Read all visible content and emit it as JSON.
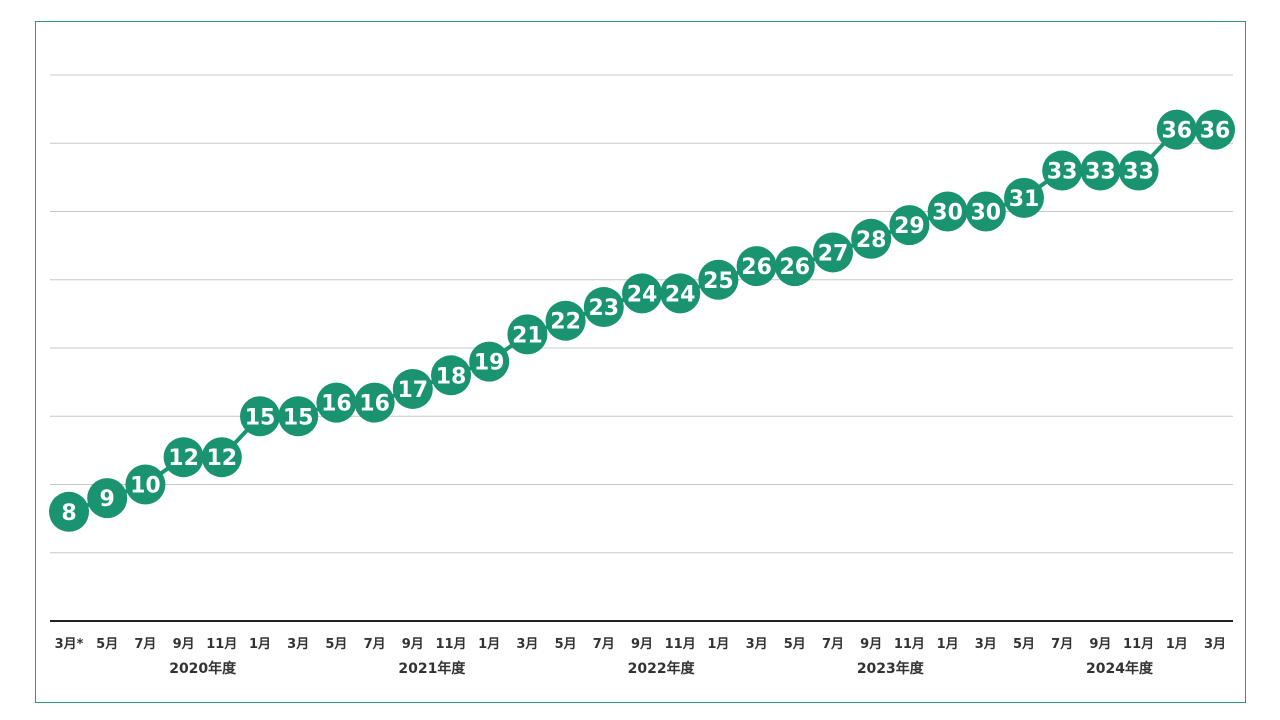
{
  "colors": {
    "series": "#1a9470",
    "frame": "#2a9a7f"
  },
  "chart_data": {
    "type": "line",
    "title": "",
    "xlabel": "",
    "ylabel": "",
    "grid": true,
    "categories": [
      "3月*",
      "5月",
      "7月",
      "9月",
      "11月",
      "1月",
      "3月",
      "5月",
      "7月",
      "9月",
      "11月",
      "1月",
      "3月",
      "5月",
      "7月",
      "9月",
      "11月",
      "1月",
      "3月",
      "5月",
      "7月",
      "9月",
      "11月",
      "1月",
      "3月",
      "5月",
      "7月",
      "9月",
      "11月",
      "1月",
      "3月"
    ],
    "series": [
      {
        "values": [
          8,
          9,
          10,
          12,
          12,
          15,
          15,
          16,
          16,
          17,
          18,
          19,
          21,
          22,
          23,
          24,
          24,
          25,
          26,
          26,
          27,
          28,
          29,
          30,
          30,
          31,
          33,
          33,
          33,
          36,
          36
        ]
      }
    ],
    "ylim": [
      0,
      40
    ],
    "fiscal_year_groups": [
      {
        "label": "2020年度",
        "start": 1,
        "end": 6
      },
      {
        "label": "2021年度",
        "start": 7,
        "end": 12
      },
      {
        "label": "2022年度",
        "start": 13,
        "end": 18
      },
      {
        "label": "2023年度",
        "start": 19,
        "end": 24
      },
      {
        "label": "2024年度",
        "start": 25,
        "end": 30
      }
    ]
  }
}
